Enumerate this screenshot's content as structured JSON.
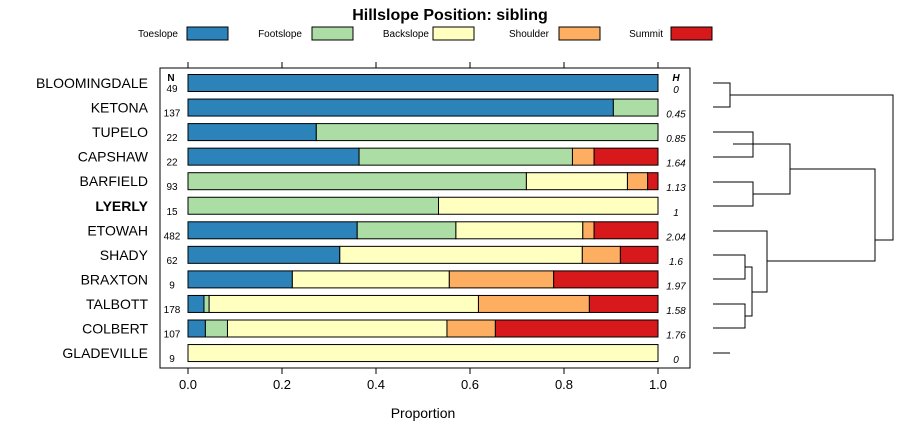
{
  "chart_data": {
    "type": "bar",
    "stacked": true,
    "orientation": "horizontal",
    "title": "Hillslope Position: sibling",
    "xlabel": "Proportion",
    "xlim": [
      0,
      1
    ],
    "xticks": [
      "0.0",
      "0.2",
      "0.4",
      "0.6",
      "0.8",
      "1.0"
    ],
    "n_header": "N",
    "h_header": "H",
    "legend_position": "top",
    "dendrogram": true,
    "categories": [
      "BLOOMINGDALE",
      "KETONA",
      "TUPELO",
      "CAPSHAW",
      "BARFIELD",
      "LYERLY",
      "ETOWAH",
      "SHADY",
      "BRAXTON",
      "TALBOTT",
      "COLBERT",
      "GLADEVILLE"
    ],
    "highlight": "LYERLY",
    "n": [
      "49",
      "137",
      "22",
      "22",
      "93",
      "15",
      "482",
      "62",
      "9",
      "178",
      "107",
      "9"
    ],
    "h": [
      "0",
      "0.45",
      "0.85",
      "1.64",
      "1.13",
      "1",
      "2.04",
      "1.6",
      "1.97",
      "1.58",
      "1.76",
      "0"
    ],
    "series": [
      {
        "name": "Toeslope",
        "color": "#2b83ba",
        "values": [
          1.0,
          0.905,
          0.273,
          0.364,
          0.0,
          0.0,
          0.36,
          0.323,
          0.222,
          0.034,
          0.037,
          0.0
        ]
      },
      {
        "name": "Footslope",
        "color": "#abdda4",
        "values": [
          0.0,
          0.095,
          0.727,
          0.454,
          0.72,
          0.533,
          0.21,
          0.0,
          0.0,
          0.011,
          0.047,
          0.0
        ]
      },
      {
        "name": "Backslope",
        "color": "#ffffbf",
        "values": [
          0.0,
          0.0,
          0.0,
          0.0,
          0.215,
          0.467,
          0.27,
          0.516,
          0.334,
          0.573,
          0.467,
          1.0
        ]
      },
      {
        "name": "Shoulder",
        "color": "#fdae61",
        "values": [
          0.0,
          0.0,
          0.0,
          0.046,
          0.043,
          0.0,
          0.024,
          0.081,
          0.222,
          0.236,
          0.103,
          0.0
        ]
      },
      {
        "name": "Summit",
        "color": "#d7191c",
        "values": [
          0.0,
          0.0,
          0.0,
          0.136,
          0.022,
          0.0,
          0.136,
          0.08,
          0.222,
          0.146,
          0.346,
          0.0
        ]
      }
    ]
  }
}
